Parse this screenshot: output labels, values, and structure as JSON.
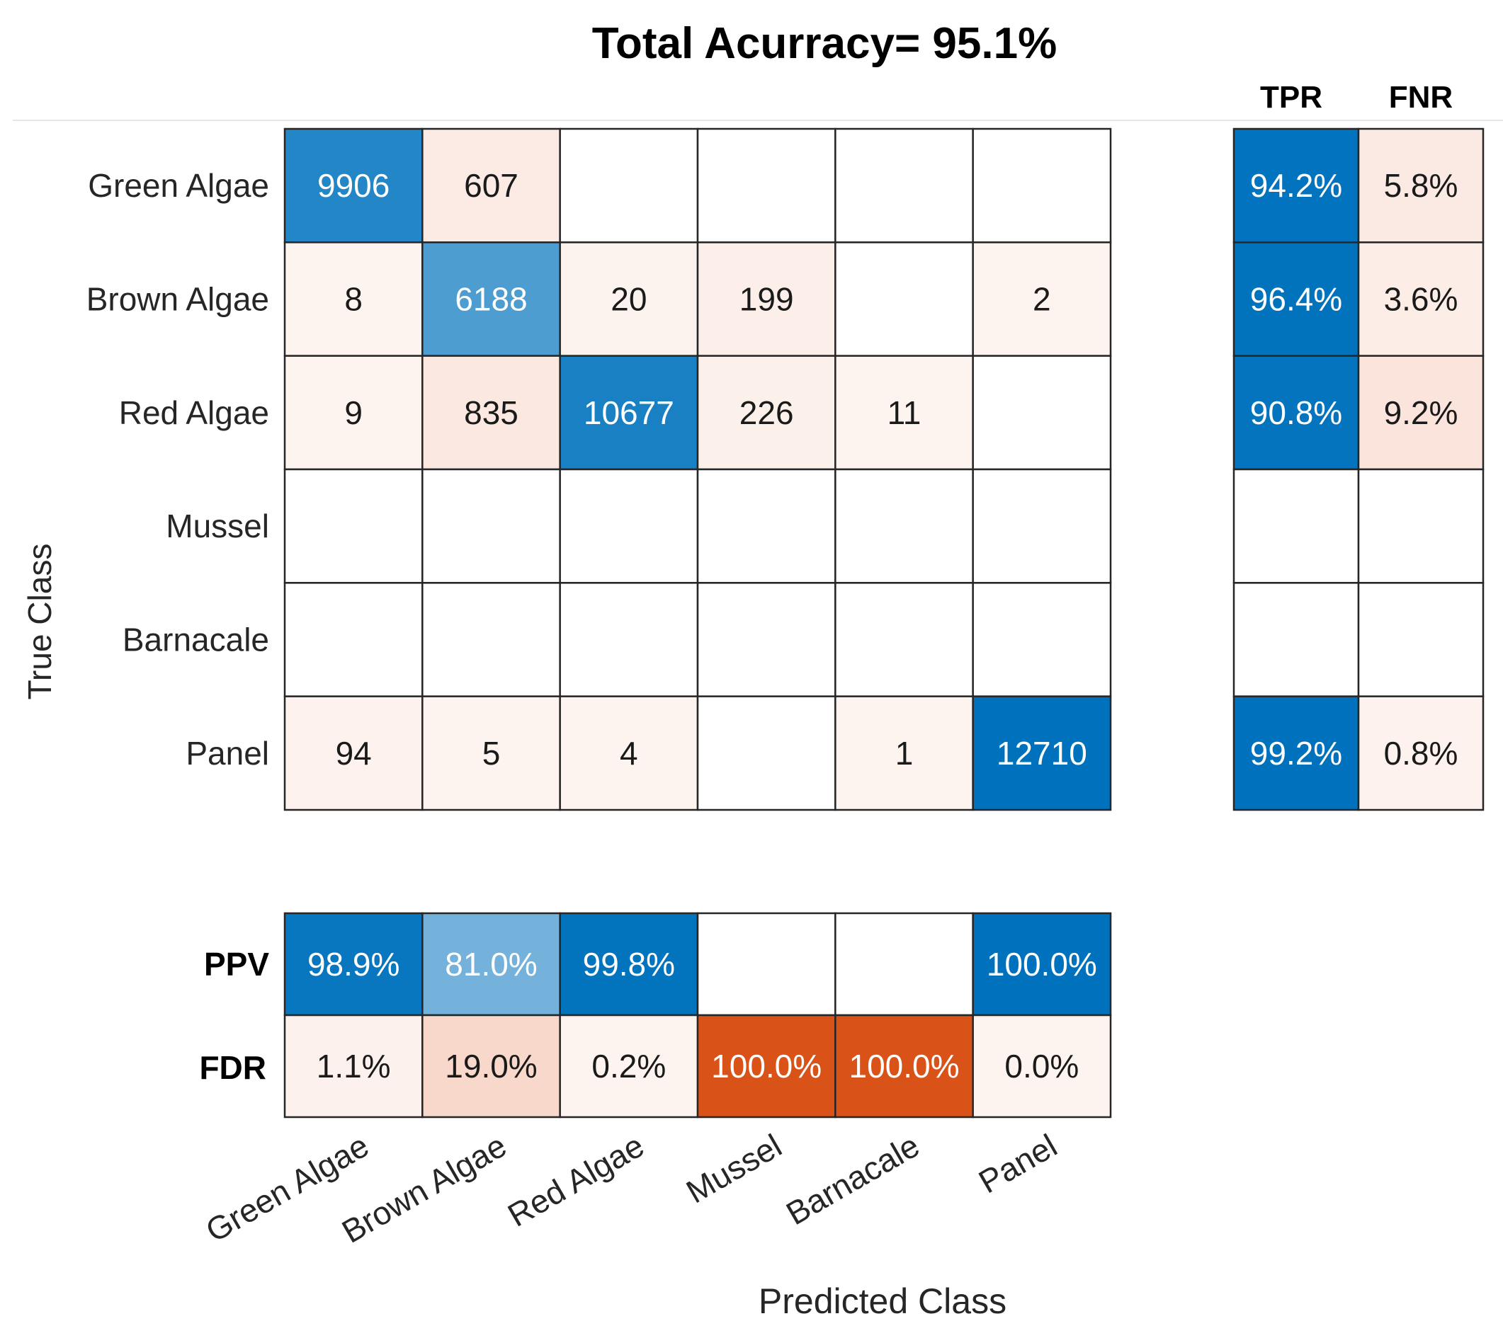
{
  "chart_data": {
    "type": "heatmap",
    "title": "Total Acurracy= 95.1%",
    "xlabel": "Predicted Class",
    "ylabel": "True Class",
    "classes": [
      "Green Algae",
      "Brown Algae",
      "Red Algae",
      "Mussel",
      "Barnacale",
      "Panel"
    ],
    "matrix": [
      [
        9906,
        607,
        null,
        null,
        null,
        null
      ],
      [
        8,
        6188,
        20,
        199,
        null,
        2
      ],
      [
        9,
        835,
        10677,
        226,
        11,
        null
      ],
      [
        null,
        null,
        null,
        null,
        null,
        null
      ],
      [
        null,
        null,
        null,
        null,
        null,
        null
      ],
      [
        94,
        5,
        4,
        null,
        1,
        12710
      ]
    ],
    "row_summary": {
      "headers": [
        "TPR",
        "FNR"
      ],
      "tpr": [
        "94.2%",
        "96.4%",
        "90.8%",
        null,
        null,
        "99.2%"
      ],
      "fnr": [
        "5.8%",
        "3.6%",
        "9.2%",
        null,
        null,
        "0.8%"
      ]
    },
    "column_summary": {
      "labels": [
        "PPV",
        "FDR"
      ],
      "ppv": [
        "98.9%",
        "81.0%",
        "99.8%",
        null,
        null,
        "100.0%"
      ],
      "fdr": [
        "1.1%",
        "19.0%",
        "0.2%",
        "100.0%",
        "100.0%",
        "0.0%"
      ]
    },
    "colors": {
      "correct": "#0072bd",
      "incorrect": "#d95319",
      "light": "#fdf3ef",
      "border": "#262626",
      "text_dark": "#1a1a1a",
      "text_light": "#ffffff"
    }
  }
}
